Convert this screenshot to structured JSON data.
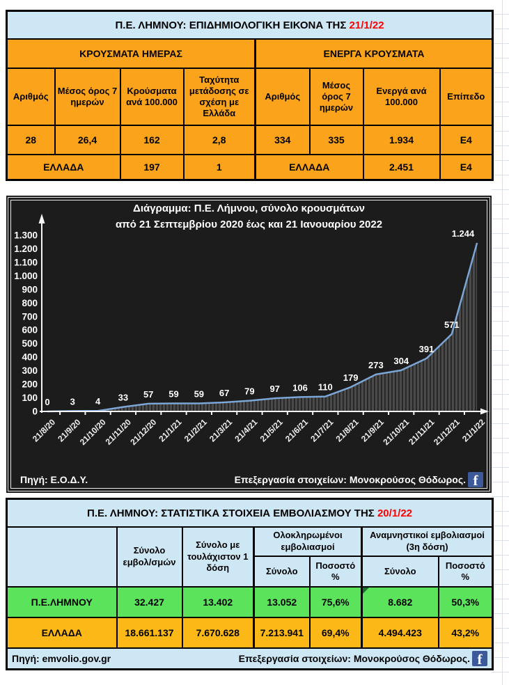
{
  "epidemiology_table": {
    "title": {
      "prefix": "Π.Ε. ΛΗΜΝΟΥ: ΕΠΙΔΗΜΙΟΛΟΓΙΚΗ ΕΙΚΟΝΑ ΤΗΣ ",
      "date": "21/1/22"
    },
    "sections": {
      "daily": "ΚΡΟΥΣΜΑΤΑ ΗΜΕΡΑΣ",
      "active": "ΕΝΕΡΓΑ ΚΡΟΥΣΜΑΤΑ"
    },
    "columns": [
      "Αριθμός",
      "Μέσος όρος 7 ημερών",
      "Κρούσματα ανά 100.000",
      "Ταχύτητα μετάδοσης σε σχέση με Ελλάδα",
      "Αριθμός",
      "Μέσος όρος 7 ημερών",
      "Ενεργά ανά 100.000",
      "Επίπεδο"
    ],
    "limnos": [
      "28",
      "26,4",
      "162",
      "2,8",
      "334",
      "335",
      "1.934",
      "Ε4"
    ],
    "greece": {
      "label_daily": "ΕΛΛΑΔΑ",
      "cases_per_100k": "197",
      "transmission_speed": "1",
      "label_active": "ΕΛΛΑΔΑ",
      "active_per_100k": "2.451",
      "level": "Ε4"
    }
  },
  "chart": {
    "title_line1": "Διάγραμμα: Π.Ε. Λήμνου, σύνολο κρουσμάτων",
    "title_line2": "από 21 Σεπτεμβρίου 2020 έως και 21 Ιανουαρίου 2022",
    "source": "Πηγή: Ε.Ο.Δ.Υ.",
    "credit": "Επεξεργασία στοιχείων: Μονοκρούσος Θόδωρος.",
    "facebook_glyph": "f"
  },
  "chart_data": {
    "type": "area",
    "title": "Διάγραμμα: Π.Ε. Λήμνου, σύνολο κρουσμάτων από 21 Σεπτεμβρίου 2020 έως και 21 Ιανουαρίου 2022",
    "x": [
      "21/8/20",
      "21/9/20",
      "21/10/20",
      "21/11/20",
      "21/12/20",
      "21/1/21",
      "21/2/21",
      "21/3/21",
      "21/4/21",
      "21/5/21",
      "21/6/21",
      "21/7/21",
      "21/8/21",
      "21/9/21",
      "21/10/21",
      "21/11/21",
      "21/12/21",
      "21/1/22"
    ],
    "values": [
      0,
      3,
      4,
      33,
      57,
      59,
      59,
      67,
      79,
      97,
      106,
      110,
      179,
      273,
      304,
      391,
      571,
      1244
    ],
    "point_labels": [
      "0",
      "3",
      "4",
      "33",
      "57",
      "59",
      "59",
      "67",
      "79",
      "97",
      "106",
      "110",
      "179",
      "273",
      "304",
      "391",
      "571",
      "1.244"
    ],
    "xlabel": "",
    "ylabel": "",
    "ylim": [
      0,
      1300
    ],
    "ytick_step": 100,
    "grid": false,
    "legend_position": "none",
    "colors": {
      "line": "#7ca6d6",
      "area_base": "#4a4a4a",
      "area_stripe": "#242424",
      "background": "#1c1c1c",
      "axis": "#f5f5f5",
      "text": "#ffffff"
    }
  },
  "vaccination_table": {
    "title": {
      "prefix": "Π.Ε. ΛΗΜΝΟΥ: ΣΤΑΤΙΣΤΙΚΑ ΣΤΟΙΧΕΙΑ ΕΜΒΟΛΙΑΣΜΟΥ ΤΗΣ ",
      "date": "20/1/22"
    },
    "columns": {
      "total_vaccinations": "Σύνολο εμβολ/σμών",
      "total_first_dose": "Σύνολο με τουλάχιστον 1 δόση",
      "completed_group": "Ολοκληρωμένοι εμβολιασμοί",
      "booster_group": "Αναμνηστικοί εμβολιασμοί (3η δόση)",
      "completed_total": "Σύνολο",
      "completed_pct": "Ποσοστό %",
      "booster_total": "Σύνολο",
      "booster_pct": "Ποσοστό %"
    },
    "rows": [
      {
        "label": "Π.Ε.ΛΗΜΝΟΥ",
        "total": "32.427",
        "first_dose": "13.402",
        "completed_total": "13.052",
        "completed_pct": "75,6%",
        "booster_total": "8.682",
        "booster_pct": "50,3%"
      },
      {
        "label": "ΕΛΛΑΔΑ",
        "total": "18.661.137",
        "first_dose": "7.670.628",
        "completed_total": "7.213.941",
        "completed_pct": "69,4%",
        "booster_total": "4.494.423",
        "booster_pct": "43,2%"
      }
    ],
    "footer": {
      "source": "Πηγή: emvolio.gov.gr",
      "credit": "Επεξεργασία στοιχείων: Μονοκρούσος Θόδωρος.",
      "facebook_glyph": "f"
    }
  },
  "theme": {
    "orange": "#fca31c",
    "amber": "#fbb817",
    "green": "#5be45b",
    "light_blue": "#cee7f5",
    "date_red": "#ff0000"
  }
}
